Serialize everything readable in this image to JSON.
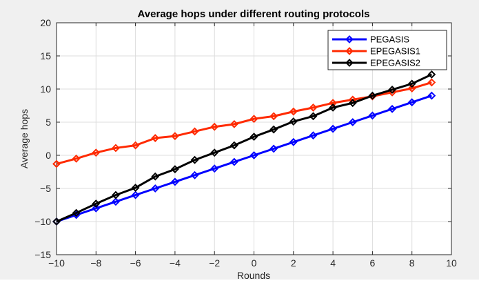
{
  "chart_data": {
    "type": "line",
    "title": "Average hops under different routing protocols",
    "xlabel": "Rounds",
    "ylabel": "Average hops",
    "xlim": [
      -10,
      10
    ],
    "ylim": [
      -15,
      20
    ],
    "xticks": [
      -10,
      -8,
      -6,
      -4,
      -2,
      0,
      2,
      4,
      6,
      8,
      10
    ],
    "yticks": [
      -15,
      -10,
      -5,
      0,
      5,
      10,
      15,
      20
    ],
    "grid": true,
    "legend_position": "top-right",
    "marker": "diamond",
    "x": [
      -10,
      -9,
      -8,
      -7,
      -6,
      -5,
      -4,
      -3,
      -2,
      -1,
      0,
      1,
      2,
      3,
      4,
      5,
      6,
      7,
      8,
      9
    ],
    "series": [
      {
        "name": "PEGASIS",
        "color": "#0000ff",
        "values": [
          -10,
          -9,
          -8,
          -7,
          -6,
          -5,
          -4,
          -3,
          -2,
          -1,
          0,
          1,
          2,
          3,
          4,
          5,
          6,
          7,
          8,
          9
        ]
      },
      {
        "name": "EPEGASIS1",
        "color": "#ff2a00",
        "values": [
          -1.3,
          -0.5,
          0.4,
          1.1,
          1.5,
          2.6,
          2.9,
          3.6,
          4.3,
          4.7,
          5.5,
          5.9,
          6.6,
          7.2,
          7.9,
          8.4,
          8.9,
          9.5,
          10.1,
          11.0
        ]
      },
      {
        "name": "EPEGASIS2",
        "color": "#000000",
        "values": [
          -10,
          -8.7,
          -7.3,
          -6.0,
          -4.9,
          -3.2,
          -2.1,
          -0.7,
          0.4,
          1.5,
          2.8,
          3.9,
          5.1,
          5.9,
          7.2,
          7.9,
          9.0,
          9.9,
          10.8,
          12.2
        ]
      }
    ]
  }
}
